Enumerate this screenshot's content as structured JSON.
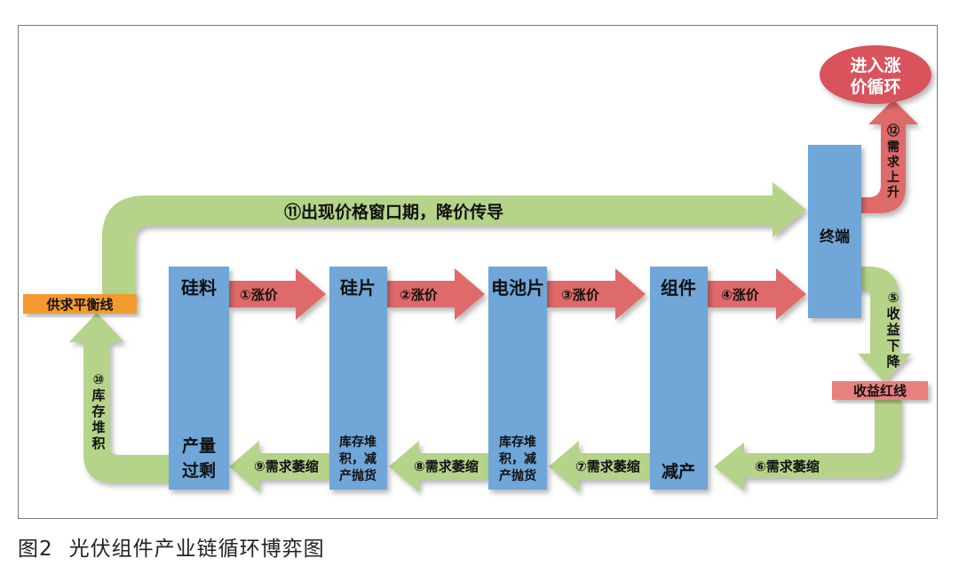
{
  "diagram": {
    "stages": [
      {
        "id": "silicon",
        "top": "硅料",
        "bottom": [
          "产量",
          "过剩"
        ]
      },
      {
        "id": "wafer",
        "top": "硅片",
        "bottom": [
          "库存堆",
          "积，减",
          "产抛货"
        ]
      },
      {
        "id": "cell",
        "top": "电池片",
        "bottom": [
          "库存堆",
          "积，减",
          "产抛货"
        ]
      },
      {
        "id": "module",
        "top": "组件",
        "bottom": [
          "减产"
        ]
      }
    ],
    "terminal": "终端",
    "up_arrows": [
      "①涨价",
      "②涨价",
      "③涨价",
      "④涨价"
    ],
    "down_arrows": [
      "⑥需求萎缩",
      "⑦需求萎缩",
      "⑧需求萎缩",
      "⑨需求萎缩"
    ],
    "top_arrow": "⑪出现价格窗口期，降价传导",
    "step5": [
      "⑤",
      "收",
      "益",
      "下",
      "降"
    ],
    "step10": [
      "⑩",
      "库",
      "存",
      "堆",
      "积"
    ],
    "step12": [
      "⑫",
      "需",
      "求",
      "上",
      "升"
    ],
    "supply_demand_line": "供求平衡线",
    "profit_red_line": "收益红线",
    "price_cycle": [
      "进入涨",
      "价循环"
    ]
  },
  "caption": {
    "number": "图2",
    "title": "光伏组件产业链循环博弈图"
  },
  "colors": {
    "box": "#70a6d8",
    "red_arrow": "#df6b6b",
    "green_arrow": "#b5d389",
    "orange_bar": "#f29a2e",
    "salmon_bar": "#e8817e",
    "ellipse": "#d9535c"
  }
}
